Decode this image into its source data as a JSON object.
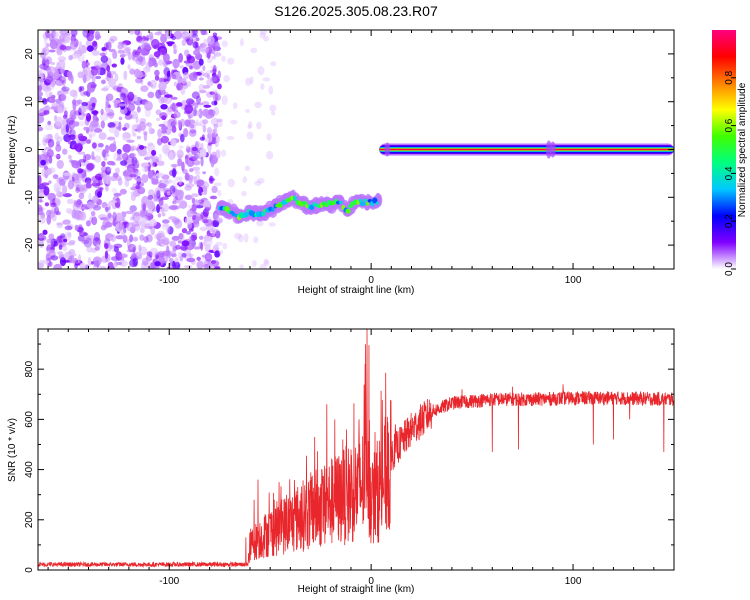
{
  "title": "S126.2025.305.08.23.R07",
  "chart_data": [
    {
      "type": "heatmap",
      "xlabel": "Height of straight line (km)",
      "ylabel": "Frequency (Hz)",
      "xlim": [
        -165,
        150
      ],
      "ylim": [
        -25,
        25
      ],
      "x_ticks": [
        -100,
        0,
        100
      ],
      "y_ticks": [
        -20,
        -10,
        0,
        10,
        20
      ],
      "colorbar": {
        "label": "Normalized spectral amplitude",
        "range": [
          0,
          1
        ],
        "ticks": [
          0.0,
          0.2,
          0.4,
          0.6,
          0.8
        ],
        "colormap": [
          "#ffffff",
          "#8000ff",
          "#0000ff",
          "#00c8ff",
          "#00ff80",
          "#40ff00",
          "#ffff00",
          "#ff8000",
          "#ff0000",
          "#ff0080"
        ]
      },
      "regions": [
        {
          "description": "scattered noise",
          "x_range": [
            -165,
            -75
          ],
          "freq_range": [
            -25,
            25
          ],
          "amplitude": 0.1
        },
        {
          "description": "wavy tone",
          "x_range": [
            -75,
            4
          ],
          "track": [
            [
              -75,
              -12
            ],
            [
              -70,
              -13
            ],
            [
              -65,
              -14
            ],
            [
              -60,
              -13
            ],
            [
              -55,
              -13.5
            ],
            [
              -50,
              -12.5
            ],
            [
              -45,
              -11.5
            ],
            [
              -40,
              -10
            ],
            [
              -35,
              -11
            ],
            [
              -30,
              -12
            ],
            [
              -25,
              -11.5
            ],
            [
              -20,
              -11.5
            ],
            [
              -15,
              -11
            ],
            [
              -12,
              -13
            ],
            [
              -8,
              -11
            ],
            [
              -4,
              -11
            ],
            [
              0,
              -11
            ],
            [
              4,
              -11
            ]
          ],
          "amplitude": 0.45
        },
        {
          "description": "steady tone",
          "x_range": [
            4,
            150
          ],
          "freq": 0,
          "amplitude": 1.0
        }
      ]
    },
    {
      "type": "line",
      "xlabel": "Height of straight line (km)",
      "ylabel": "SNR (10 * v/v)",
      "xlim": [
        -165,
        150
      ],
      "ylim": [
        0,
        960
      ],
      "x_ticks": [
        -100,
        0,
        100
      ],
      "y_ticks": [
        0,
        200,
        400,
        600,
        800
      ],
      "color": "#e8262b",
      "envelope": [
        [
          -165,
          22
        ],
        [
          -80,
          22
        ],
        [
          -61,
          22
        ],
        [
          -60,
          110
        ],
        [
          -50,
          170
        ],
        [
          -40,
          210
        ],
        [
          -30,
          260
        ],
        [
          -20,
          300
        ],
        [
          -10,
          340
        ],
        [
          -4,
          380
        ],
        [
          -2,
          620
        ],
        [
          0,
          300
        ],
        [
          5,
          380
        ],
        [
          10,
          460
        ],
        [
          20,
          560
        ],
        [
          30,
          630
        ],
        [
          40,
          665
        ],
        [
          60,
          680
        ],
        [
          80,
          680
        ],
        [
          100,
          685
        ],
        [
          120,
          685
        ],
        [
          150,
          680
        ]
      ],
      "spikes": [
        [
          -62,
          130
        ],
        [
          -58,
          280
        ],
        [
          -56,
          360
        ],
        [
          -48,
          280
        ],
        [
          -44,
          230
        ],
        [
          -38,
          290
        ],
        [
          -33,
          210
        ],
        [
          -28,
          530
        ],
        [
          -22,
          660
        ],
        [
          -18,
          600
        ],
        [
          -14,
          520
        ],
        [
          -10,
          480
        ],
        [
          -6,
          600
        ],
        [
          -3,
          820
        ],
        [
          -2,
          960
        ],
        [
          8,
          610
        ],
        [
          12,
          580
        ],
        [
          18,
          600
        ],
        [
          45,
          720
        ],
        [
          70,
          730
        ],
        [
          95,
          740
        ],
        [
          -1,
          520
        ]
      ],
      "dips": [
        [
          -1,
          130
        ],
        [
          2,
          150
        ],
        [
          60,
          470
        ],
        [
          73,
          480
        ],
        [
          110,
          500
        ],
        [
          120,
          520
        ],
        [
          128,
          600
        ],
        [
          145,
          470
        ]
      ]
    }
  ]
}
